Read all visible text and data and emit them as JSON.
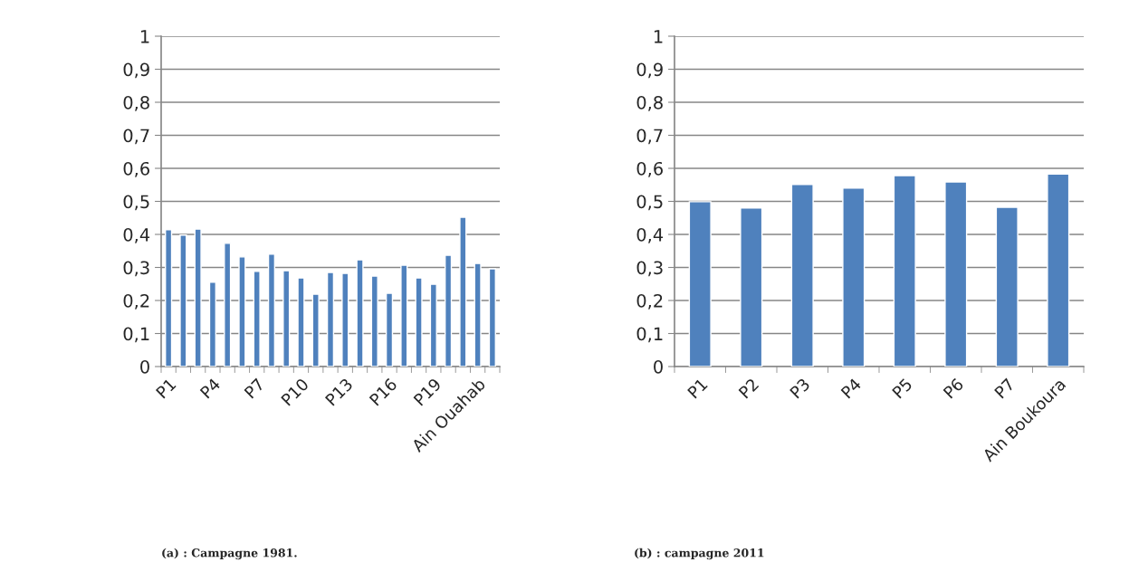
{
  "chart_data": [
    {
      "type": "bar",
      "categories": [
        "P1",
        null,
        null,
        "P4",
        null,
        null,
        "P7",
        null,
        null,
        "P10",
        null,
        null,
        "P13",
        null,
        null,
        "P16",
        null,
        null,
        "P19",
        null,
        null,
        "Ain Ouahab",
        null
      ],
      "values": [
        0.414,
        0.398,
        0.416,
        0.255,
        0.373,
        0.332,
        0.288,
        0.34,
        0.29,
        0.268,
        0.219,
        0.285,
        0.282,
        0.323,
        0.274,
        0.222,
        0.307,
        0.268,
        0.249,
        0.337,
        0.452,
        0.312,
        0.296
      ],
      "color": "#4f81bd",
      "ylim": [
        0,
        1
      ],
      "yticks": [
        0,
        {
          "value": 0.1,
          "label": "0,1"
        },
        {
          "value": 0.2,
          "label": "0,2"
        },
        {
          "value": 0.3,
          "label": "0,3"
        },
        {
          "value": 0.4,
          "label": "0,4"
        },
        {
          "value": 0.5,
          "label": "0,5"
        },
        {
          "value": 0.6,
          "label": "0,6"
        },
        {
          "value": 0.7,
          "label": "0,7"
        },
        {
          "value": 0.8,
          "label": "0,8"
        },
        {
          "value": 0.9,
          "label": "0,9"
        },
        1
      ],
      "grid": "y",
      "annotations": [
        "(a) : Campagne 1981."
      ]
    },
    {
      "type": "bar",
      "categories": [
        "P1",
        "P2",
        "P3",
        "P4",
        "P5",
        "P6",
        "P7",
        "Ain Boukoura"
      ],
      "values": [
        0.499,
        0.48,
        0.551,
        0.54,
        0.578,
        0.559,
        0.482,
        0.583
      ],
      "color": "#4f81bd",
      "ylim": [
        0,
        1
      ],
      "yticks": [
        0,
        {
          "value": 0.1,
          "label": "0,1"
        },
        {
          "value": 0.2,
          "label": "0,2"
        },
        {
          "value": 0.3,
          "label": "0,3"
        },
        {
          "value": 0.4,
          "label": "0,4"
        },
        {
          "value": 0.5,
          "label": "0,5"
        },
        {
          "value": 0.6,
          "label": "0,6"
        },
        {
          "value": 0.7,
          "label": "0,7"
        },
        {
          "value": 0.8,
          "label": "0,8"
        },
        {
          "value": 0.9,
          "label": "0,9"
        },
        1
      ],
      "grid": "y",
      "annotations": [
        "(b) : campagne 2011"
      ]
    }
  ]
}
